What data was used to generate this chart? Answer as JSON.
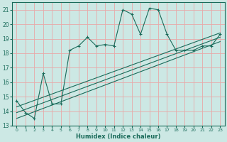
{
  "xlabel": "Humidex (Indice chaleur)",
  "bg_color": "#cce8e4",
  "grid_color": "#e8a8a8",
  "line_color": "#1a6b5a",
  "xlim": [
    -0.5,
    23.5
  ],
  "ylim": [
    13,
    21.5
  ],
  "yticks": [
    13,
    14,
    15,
    16,
    17,
    18,
    19,
    20,
    21
  ],
  "xticks": [
    0,
    1,
    2,
    3,
    4,
    5,
    6,
    7,
    8,
    9,
    10,
    11,
    12,
    13,
    14,
    15,
    16,
    17,
    18,
    19,
    20,
    21,
    22,
    23
  ],
  "main_x": [
    0,
    1,
    2,
    3,
    4,
    5,
    6,
    7,
    8,
    9,
    10,
    11,
    12,
    13,
    14,
    15,
    16,
    17,
    18,
    19,
    20,
    21,
    22,
    23
  ],
  "main_y": [
    14.7,
    13.9,
    13.5,
    16.6,
    14.5,
    14.5,
    18.2,
    18.5,
    19.1,
    18.5,
    18.6,
    18.5,
    21.0,
    20.7,
    19.3,
    21.1,
    21.0,
    19.3,
    18.2,
    18.2,
    18.2,
    18.5,
    18.5,
    19.3
  ],
  "line2_x": [
    0,
    23
  ],
  "line2_y": [
    13.5,
    18.8
  ],
  "line3_x": [
    0,
    23
  ],
  "line3_y": [
    13.9,
    19.1
  ],
  "line4_x": [
    0,
    23
  ],
  "line4_y": [
    14.3,
    19.4
  ]
}
